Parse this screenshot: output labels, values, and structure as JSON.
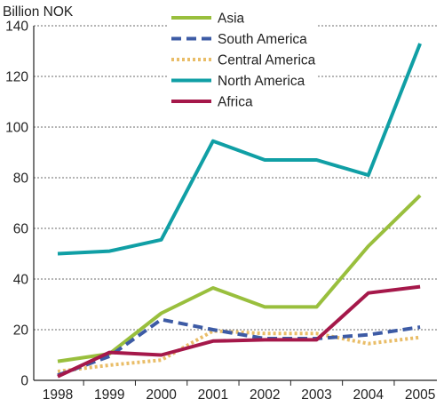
{
  "chart_data": {
    "type": "line",
    "title": "",
    "xlabel": "",
    "ylabel": "Billion NOK",
    "x": [
      "1998",
      "1999",
      "2000",
      "2001",
      "2002",
      "2003",
      "2004",
      "2005"
    ],
    "ylim": [
      0,
      140
    ],
    "yticks": [
      "0",
      "20",
      "40",
      "60",
      "80",
      "100",
      "120",
      "140"
    ],
    "grid": "horizontal dotted",
    "legend_position": "top-center",
    "series": [
      {
        "name": "Asia",
        "color": "#99bf3d",
        "dash": "solid",
        "values": [
          7.5,
          10.5,
          26.5,
          36.5,
          29,
          29,
          53,
          73
        ]
      },
      {
        "name": "South America",
        "color": "#3d5ba5",
        "dash": "dashed",
        "values": [
          2,
          9.5,
          24,
          20,
          16.5,
          16.5,
          18,
          21
        ]
      },
      {
        "name": "Central America",
        "color": "#e9bd68",
        "dash": "dotted",
        "values": [
          3.5,
          6,
          8,
          19.5,
          18.5,
          18.5,
          14.5,
          17
        ]
      },
      {
        "name": "North America",
        "color": "#109fa5",
        "dash": "solid",
        "values": [
          50,
          51,
          55.5,
          94.5,
          87,
          87,
          81,
          133
        ]
      },
      {
        "name": "Africa",
        "color": "#a5184a",
        "dash": "solid",
        "values": [
          1.5,
          11,
          10,
          15.5,
          16,
          16,
          34.5,
          37
        ]
      }
    ]
  }
}
